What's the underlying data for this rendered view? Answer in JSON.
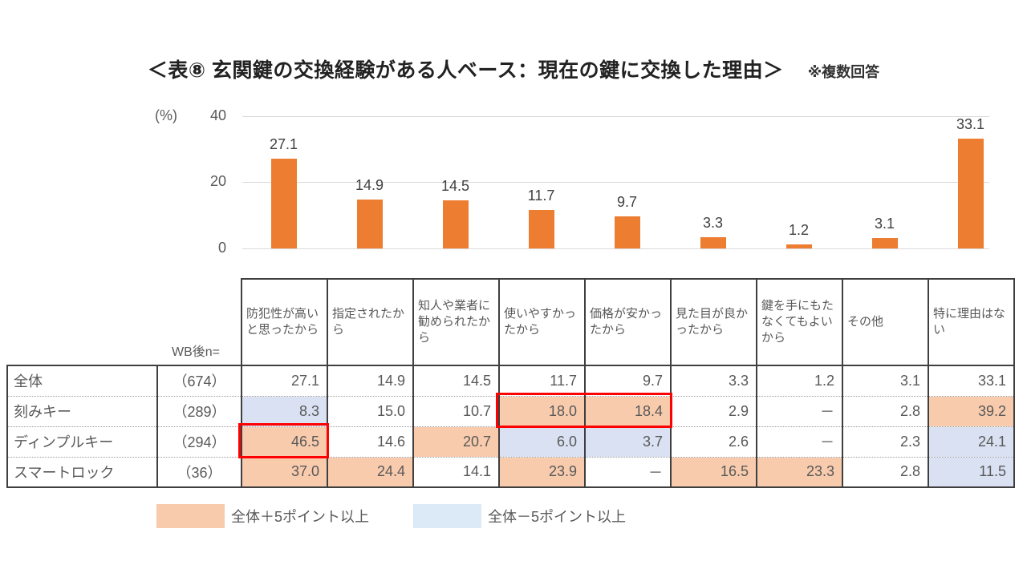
{
  "page": {
    "title": "＜表⑧ 玄関鍵の交換経験がある人ベース：現在の鍵に交換した理由＞",
    "note": "※複数回答"
  },
  "chart_data": {
    "type": "bar",
    "unit_label": "(%)",
    "categories": [
      "防犯性が高いと思ったから",
      "指定されたから",
      "知人や業者に勧められたから",
      "使いやすかったから",
      "価格が安かったから",
      "見た目が良かったから",
      "鍵を手にもたなくてもよいから",
      "その他",
      "特に理由はない"
    ],
    "values": [
      27.1,
      14.9,
      14.5,
      11.7,
      9.7,
      3.3,
      1.2,
      3.1,
      33.1
    ],
    "value_labels": [
      "27.1",
      "14.9",
      "14.5",
      "11.7",
      "9.7",
      "3.3",
      "1.2",
      "3.1",
      "33.1"
    ],
    "ylim": [
      0,
      40
    ],
    "yticks": [
      40,
      20,
      0
    ],
    "grid": true,
    "legend_position": "none",
    "bar_color": "#ED7D31"
  },
  "table": {
    "n_header": "WB後n=",
    "columns": [
      "防犯性が高いと思ったから",
      "指定されたから",
      "知人や業者に勧められたから",
      "使いやすかったから",
      "価格が安かったから",
      "見た目が良かったから",
      "鍵を手にもたなくてもよいから",
      "その他",
      "特に理由はない"
    ],
    "rows": [
      {
        "label": "全体",
        "n": "（674）",
        "values": [
          "27.1",
          "14.9",
          "14.5",
          "11.7",
          "9.7",
          "3.3",
          "1.2",
          "3.1",
          "33.1"
        ],
        "highlight": [
          "",
          "",
          "",
          "",
          "",
          "",
          "",
          "",
          ""
        ]
      },
      {
        "label": "刻みキー",
        "n": "（289）",
        "values": [
          "8.3",
          "15.0",
          "10.7",
          "18.0",
          "18.4",
          "2.9",
          "－",
          "2.8",
          "39.2"
        ],
        "highlight": [
          "low",
          "",
          "",
          "high",
          "high",
          "",
          "",
          "",
          "high"
        ]
      },
      {
        "label": "ディンプルキー",
        "n": "（294）",
        "values": [
          "46.5",
          "14.6",
          "20.7",
          "6.0",
          "3.7",
          "2.6",
          "－",
          "2.3",
          "24.1"
        ],
        "highlight": [
          "high",
          "",
          "high",
          "low",
          "low",
          "",
          "",
          "",
          "low"
        ]
      },
      {
        "label": "スマートロック",
        "n": "（36）",
        "values": [
          "37.0",
          "24.4",
          "14.1",
          "23.9",
          "－",
          "16.5",
          "23.3",
          "2.8",
          "11.5"
        ],
        "highlight": [
          "high",
          "high",
          "",
          "high",
          "",
          "high",
          "high",
          "",
          "low"
        ]
      }
    ],
    "red_boxes": [
      {
        "row": 1,
        "col_start": 3,
        "col_end": 4
      },
      {
        "row": 2,
        "col_start": 0,
        "col_end": 0
      }
    ]
  },
  "legend": {
    "items": [
      {
        "name": "high",
        "label": "全体＋5ポイント以上",
        "color": "#F8CBAD"
      },
      {
        "name": "low",
        "label": "全体－5ポイント以上",
        "color": "#DCE9F6"
      }
    ]
  },
  "colors": {
    "bar": "#ED7D31",
    "highlight_high": "#F8CBAD",
    "highlight_low": "#D9E1F2",
    "red_box": "#FF0000",
    "gridline": "#D9D9D9"
  }
}
